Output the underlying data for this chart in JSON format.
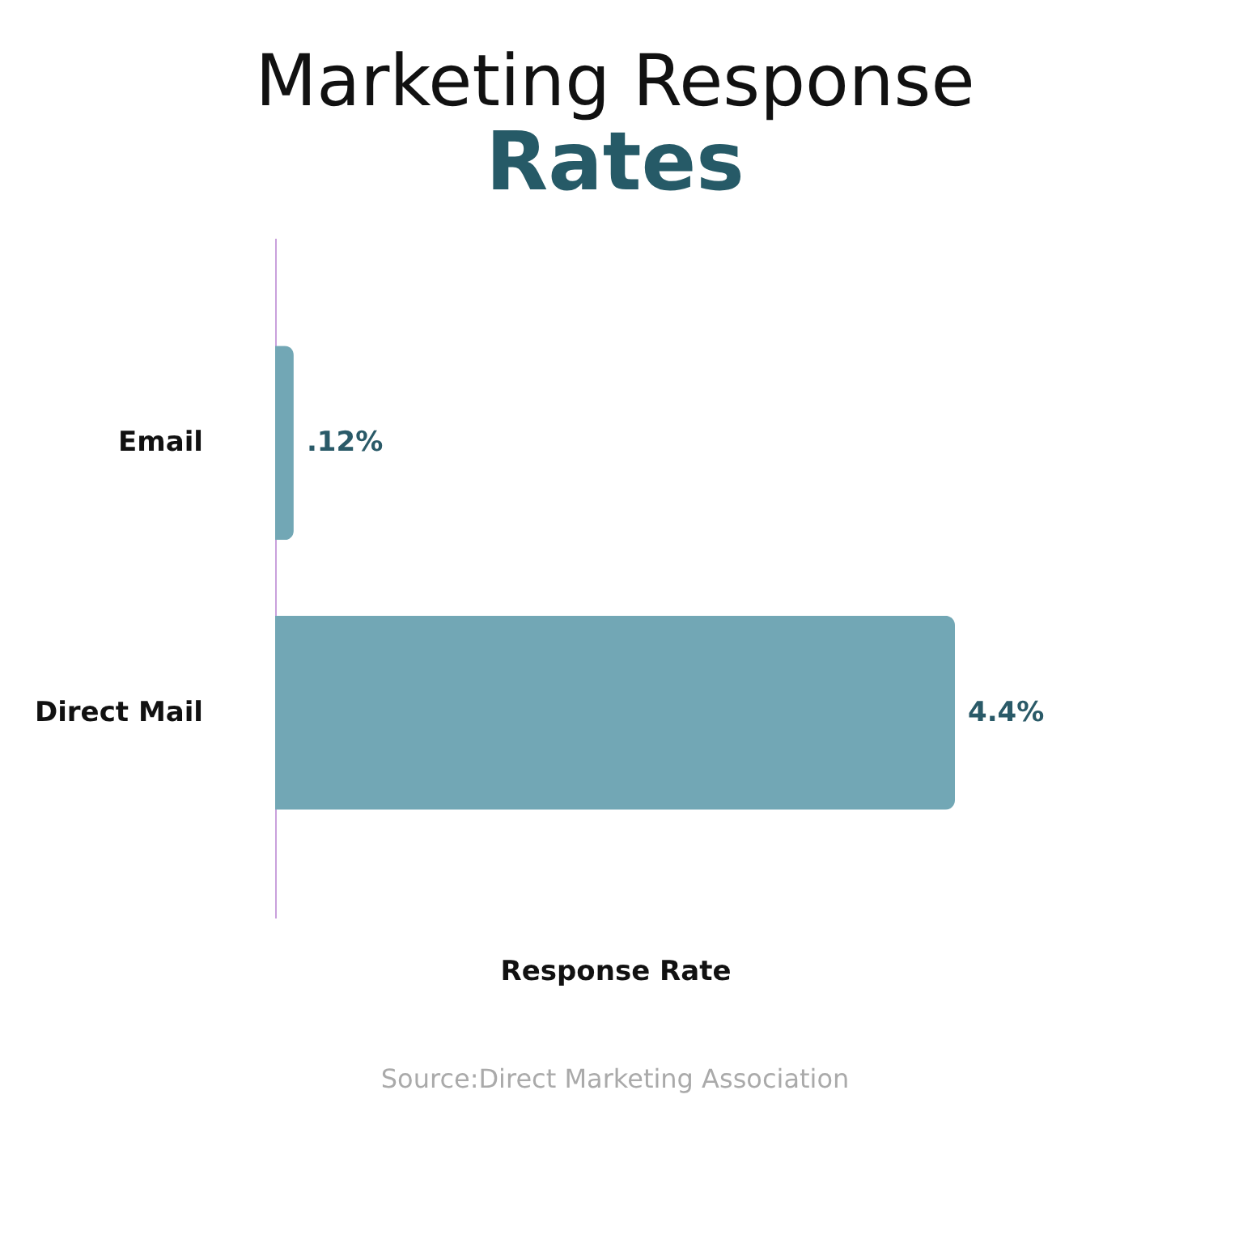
{
  "chart_data": {
    "type": "bar",
    "orientation": "horizontal",
    "title": "Marketing Response",
    "subtitle": "Rates",
    "categories": [
      "Email",
      "Direct Mail"
    ],
    "values": [
      0.12,
      4.4
    ],
    "value_labels": [
      ".12%",
      "4.4%"
    ],
    "color": "#72a7b5",
    "xlabel": "Response Rate",
    "xlim": [
      0,
      4.4
    ],
    "tick_labels": "y",
    "annotations": [
      "Source:Direct Marketing Association"
    ]
  }
}
